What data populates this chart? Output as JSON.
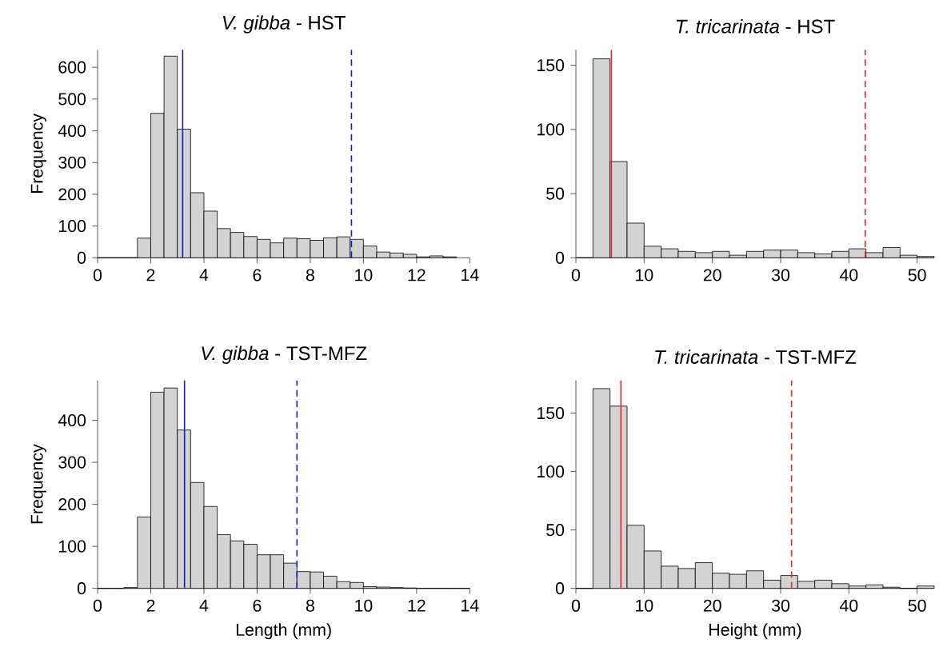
{
  "chart_data": [
    {
      "type": "histogram",
      "title": "*V. gibba* - HST",
      "ylabel": "Frequency",
      "color": "#d3d3d3",
      "bins": [
        0,
        0.5,
        1,
        1.5,
        2,
        2.5,
        3,
        3.5,
        4,
        4.5,
        5,
        5.5,
        6,
        6.5,
        7,
        7.5,
        8,
        8.5,
        9,
        9.5,
        10,
        10.5,
        11,
        11.5,
        12,
        12.5,
        13,
        13.5,
        14
      ],
      "values": [
        0,
        0,
        0,
        62,
        455,
        635,
        405,
        205,
        147,
        92,
        80,
        67,
        58,
        47,
        62,
        60,
        55,
        63,
        66,
        58,
        37,
        18,
        15,
        11,
        3,
        6,
        3,
        null
      ],
      "xlim": [
        0,
        14
      ],
      "xticks": [
        0,
        2,
        4,
        6,
        8,
        10,
        12,
        14
      ],
      "ylim": [
        0,
        655
      ],
      "yticks": [
        0,
        100,
        200,
        300,
        400,
        500,
        600
      ],
      "ref_lines": [
        {
          "axis": "x",
          "value": 3.2,
          "color": "#1a1acd",
          "line_style": "solid"
        },
        {
          "axis": "x",
          "value": 9.55,
          "color": "#1a1acd",
          "line_style": "dashed"
        }
      ]
    },
    {
      "type": "histogram",
      "title": "*T. tricarinata* - HST",
      "color": "#d3d3d3",
      "bins": [
        0,
        2.5,
        5,
        7.5,
        10,
        12.5,
        15,
        17.5,
        20,
        22.5,
        25,
        27.5,
        30,
        32.5,
        35,
        37.5,
        40,
        42.5,
        45,
        47.5,
        50,
        52.5
      ],
      "values": [
        0,
        155,
        75,
        27,
        9,
        7,
        5,
        4,
        5,
        2,
        5,
        6,
        6,
        4,
        3,
        5,
        7,
        4,
        8,
        2,
        1
      ],
      "xlim": [
        0,
        52.5
      ],
      "xticks": [
        0,
        10,
        20,
        30,
        40,
        50
      ],
      "ylim": [
        0,
        162
      ],
      "yticks": [
        0,
        50,
        100,
        150
      ],
      "ref_lines": [
        {
          "axis": "x",
          "value": 5.2,
          "color": "#e8262a",
          "line_style": "solid"
        },
        {
          "axis": "x",
          "value": 42.4,
          "color": "#e8262a",
          "line_style": "dashed"
        }
      ]
    },
    {
      "type": "histogram",
      "title": "*V. gibba* - TST-MFZ",
      "ylabel": "Frequency",
      "xlabel": "Length (mm)",
      "color": "#d3d3d3",
      "bins": [
        0,
        0.5,
        1,
        1.5,
        2,
        2.5,
        3,
        3.5,
        4,
        4.5,
        5,
        5.5,
        6,
        6.5,
        7,
        7.5,
        8,
        8.5,
        9,
        9.5,
        10,
        10.5,
        11,
        11.5,
        12,
        12.5,
        13,
        13.5,
        14
      ],
      "values": [
        0,
        0,
        2,
        170,
        467,
        477,
        377,
        252,
        195,
        128,
        113,
        105,
        80,
        80,
        60,
        40,
        39,
        29,
        16,
        14,
        4,
        3,
        2,
        1,
        0,
        0,
        0,
        0
      ],
      "xlim": [
        0,
        14
      ],
      "xticks": [
        0,
        2,
        4,
        6,
        8,
        10,
        12,
        14
      ],
      "ylim": [
        0,
        495
      ],
      "yticks": [
        0,
        100,
        200,
        300,
        400
      ],
      "ref_lines": [
        {
          "axis": "x",
          "value": 3.27,
          "color": "#1a1acd",
          "line_style": "solid"
        },
        {
          "axis": "x",
          "value": 7.5,
          "color": "#1a1acd",
          "line_style": "dashed"
        }
      ]
    },
    {
      "type": "histogram",
      "title": "*T. tricarinata* - TST-MFZ",
      "xlabel": "Height (mm)",
      "color": "#d3d3d3",
      "bins": [
        0,
        2.5,
        5,
        7.5,
        10,
        12.5,
        15,
        17.5,
        20,
        22.5,
        25,
        27.5,
        30,
        32.5,
        35,
        37.5,
        40,
        42.5,
        45,
        47.5,
        50,
        52.5
      ],
      "values": [
        0,
        171,
        156,
        54,
        32,
        19,
        17,
        22,
        13,
        12,
        15,
        7,
        11,
        6,
        7,
        4,
        2,
        3,
        1,
        0,
        2
      ],
      "xlim": [
        0,
        52.5
      ],
      "xticks": [
        0,
        10,
        20,
        30,
        40,
        50
      ],
      "ylim": [
        0,
        178
      ],
      "yticks": [
        0,
        50,
        100,
        150
      ],
      "ref_lines": [
        {
          "axis": "x",
          "value": 6.6,
          "color": "#e8262a",
          "line_style": "solid"
        },
        {
          "axis": "x",
          "value": 31.6,
          "color": "#e8262a",
          "line_style": "dashed"
        }
      ]
    }
  ]
}
